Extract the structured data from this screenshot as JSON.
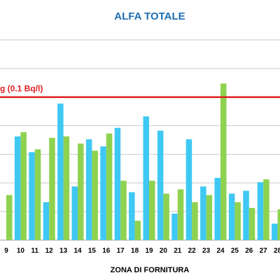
{
  "chart_data": {
    "type": "bar",
    "title": "ALFA TOTALE",
    "xlabel": "ZONA DI FORNITURA",
    "ylabel": "",
    "ylim": [
      0,
      0.14
    ],
    "grid": true,
    "categories": [
      "9",
      "10",
      "11",
      "12",
      "13",
      "14",
      "15",
      "16",
      "17",
      "18",
      "19",
      "20",
      "21",
      "22",
      "23",
      "24",
      "25",
      "26",
      "27",
      "28"
    ],
    "series": [
      {
        "values": [
          null,
          0.0725,
          0.0615,
          0.0265,
          0.0955,
          0.0375,
          0.0705,
          0.0655,
          0.0785,
          0.0335,
          0.0865,
          0.0765,
          0.0185,
          0.0705,
          0.0375,
          0.0435,
          0.0325,
          0.0345,
          0.0405,
          0.0115
        ]
      },
      {
        "values": [
          0.0315,
          0.0755,
          0.0635,
          0.0715,
          0.0725,
          0.0675,
          0.0625,
          0.0745,
          0.0415,
          0.0135,
          0.0415,
          0.0325,
          0.0355,
          0.0265,
          0.0315,
          0.1095,
          0.0265,
          0.0225,
          0.0425,
          0.0215
        ]
      }
    ],
    "reference_line": {
      "value": 0.1,
      "label": "g (0.1 Bq/l)"
    },
    "colors": {
      "series1": "#3fc8f4",
      "series2": "#8ed250",
      "reference": "#e02020",
      "title": "#1f6fb2",
      "grid": "#c8c8c8"
    }
  }
}
